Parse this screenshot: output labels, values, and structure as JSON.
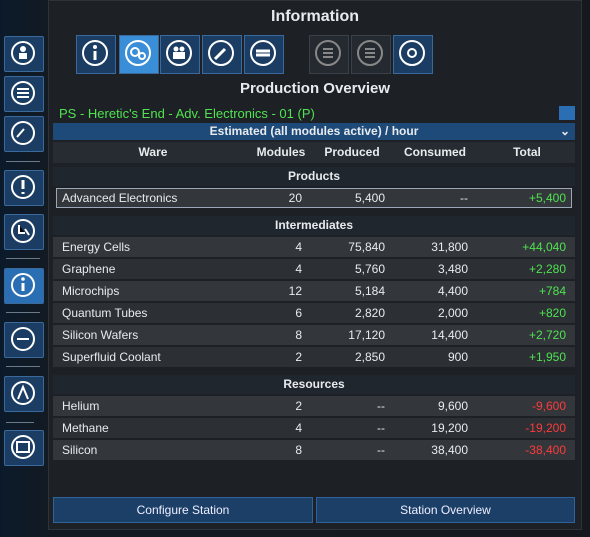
{
  "header": {
    "title": "Information"
  },
  "panel": {
    "title": "Production Overview",
    "station": "PS - Heretic's End - Adv. Electronics - 01 (P)",
    "mode": "Estimated (all modules active) / hour"
  },
  "table": {
    "columns": [
      "Ware",
      "Modules",
      "Produced",
      "Consumed",
      "Total"
    ],
    "sections": [
      {
        "title": "Products",
        "rows": [
          [
            "Advanced Electronics",
            "20",
            "5,400",
            "--",
            "+5,400"
          ]
        ]
      },
      {
        "title": "Intermediates",
        "rows": [
          [
            "Energy Cells",
            "4",
            "75,840",
            "31,800",
            "+44,040"
          ],
          [
            "Graphene",
            "4",
            "5,760",
            "3,480",
            "+2,280"
          ],
          [
            "Microchips",
            "12",
            "5,184",
            "4,400",
            "+784"
          ],
          [
            "Quantum Tubes",
            "6",
            "2,820",
            "2,000",
            "+820"
          ],
          [
            "Silicon Wafers",
            "8",
            "17,120",
            "14,400",
            "+2,720"
          ],
          [
            "Superfluid Coolant",
            "2",
            "2,850",
            "900",
            "+1,950"
          ]
        ]
      },
      {
        "title": "Resources",
        "rows": [
          [
            "Helium",
            "2",
            "--",
            "9,600",
            "-9,600"
          ],
          [
            "Methane",
            "4",
            "--",
            "19,200",
            "-19,200"
          ],
          [
            "Silicon",
            "8",
            "--",
            "38,400",
            "-38,400"
          ]
        ]
      }
    ]
  },
  "buttons": [
    "Configure Station",
    "Station Overview"
  ]
}
